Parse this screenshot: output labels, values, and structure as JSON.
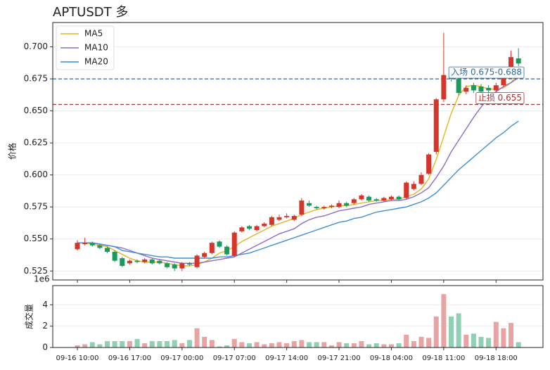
{
  "chart_data": {
    "type": "candlestick",
    "title": "APTUSDT 多",
    "ylabel": "价格",
    "categories": [
      "09-16 10:00",
      null,
      null,
      null,
      null,
      null,
      null,
      "09-16 17:00",
      null,
      null,
      null,
      null,
      null,
      null,
      "09-17 00:00",
      null,
      null,
      null,
      null,
      null,
      null,
      "09-17 07:00",
      null,
      null,
      null,
      null,
      null,
      null,
      "09-17 14:00",
      null,
      null,
      null,
      null,
      null,
      null,
      "09-17 21:00",
      null,
      null,
      null,
      null,
      null,
      null,
      "09-18 04:00",
      null,
      null,
      null,
      null,
      null,
      null,
      "09-18 11:00",
      null,
      null,
      null,
      null,
      null,
      null,
      "09-18 18:00",
      null,
      null,
      null
    ],
    "open": [
      0.542,
      0.546,
      0.547,
      0.545,
      0.543,
      0.54,
      0.535,
      0.531,
      0.533,
      0.532,
      0.534,
      0.533,
      0.531,
      0.53,
      0.527,
      0.531,
      0.528,
      0.536,
      0.539,
      0.548,
      0.544,
      0.537,
      0.556,
      0.56,
      0.557,
      0.56,
      0.561,
      0.565,
      0.567,
      0.565,
      0.569,
      0.578,
      0.575,
      0.574,
      0.575,
      0.575,
      0.578,
      0.578,
      0.581,
      0.583,
      0.581,
      0.58,
      0.581,
      0.583,
      0.582,
      0.589,
      0.593,
      0.601,
      0.618,
      0.659,
      0.677,
      0.675,
      0.665,
      0.67,
      0.669,
      0.668,
      0.666,
      0.67,
      0.684,
      0.691
    ],
    "high": [
      0.549,
      0.551,
      0.548,
      0.546,
      0.544,
      0.541,
      0.536,
      0.534,
      0.534,
      0.535,
      0.535,
      0.534,
      0.532,
      0.531,
      0.532,
      0.532,
      0.538,
      0.54,
      0.548,
      0.549,
      0.545,
      0.556,
      0.56,
      0.561,
      0.561,
      0.563,
      0.568,
      0.569,
      0.57,
      0.569,
      0.582,
      0.58,
      0.576,
      0.576,
      0.577,
      0.58,
      0.579,
      0.582,
      0.585,
      0.584,
      0.582,
      0.583,
      0.584,
      0.584,
      0.595,
      0.595,
      0.602,
      0.617,
      0.66,
      0.711,
      0.68,
      0.677,
      0.67,
      0.672,
      0.671,
      0.67,
      0.672,
      0.678,
      0.697,
      0.699
    ],
    "low": [
      0.541,
      0.545,
      0.544,
      0.542,
      0.539,
      0.532,
      0.528,
      0.53,
      0.531,
      0.531,
      0.53,
      0.53,
      0.527,
      0.525,
      0.525,
      0.529,
      0.527,
      0.535,
      0.538,
      0.543,
      0.537,
      0.536,
      0.555,
      0.557,
      0.556,
      0.559,
      0.56,
      0.564,
      0.566,
      0.564,
      0.568,
      0.575,
      0.573,
      0.573,
      0.574,
      0.574,
      0.575,
      0.577,
      0.58,
      0.579,
      0.579,
      0.579,
      0.58,
      0.58,
      0.581,
      0.588,
      0.592,
      0.6,
      0.616,
      0.657,
      0.673,
      0.662,
      0.663,
      0.664,
      0.663,
      0.664,
      0.664,
      0.669,
      0.682,
      0.685
    ],
    "close": [
      0.547,
      0.547,
      0.545,
      0.543,
      0.54,
      0.533,
      0.529,
      0.533,
      0.532,
      0.534,
      0.531,
      0.531,
      0.528,
      0.527,
      0.531,
      0.53,
      0.537,
      0.539,
      0.547,
      0.544,
      0.538,
      0.555,
      0.559,
      0.558,
      0.56,
      0.562,
      0.567,
      0.567,
      0.568,
      0.568,
      0.58,
      0.576,
      0.574,
      0.575,
      0.576,
      0.578,
      0.576,
      0.581,
      0.584,
      0.58,
      0.58,
      0.582,
      0.583,
      0.581,
      0.594,
      0.593,
      0.6,
      0.616,
      0.659,
      0.678,
      0.675,
      0.664,
      0.668,
      0.666,
      0.665,
      0.666,
      0.67,
      0.676,
      0.692,
      0.687
    ],
    "up_color": "#d6352b",
    "down_color": "#1a9a5c",
    "series": [
      {
        "name": "MA5",
        "color": "#e6b422",
        "values": [
          0.547,
          0.547,
          0.546,
          0.545,
          0.544,
          0.541,
          0.538,
          0.535,
          0.533,
          0.532,
          0.532,
          0.532,
          0.531,
          0.53,
          0.529,
          0.529,
          0.53,
          0.532,
          0.535,
          0.539,
          0.541,
          0.544,
          0.548,
          0.551,
          0.554,
          0.557,
          0.56,
          0.562,
          0.564,
          0.566,
          0.569,
          0.571,
          0.573,
          0.574,
          0.575,
          0.576,
          0.576,
          0.577,
          0.578,
          0.579,
          0.58,
          0.58,
          0.581,
          0.581,
          0.583,
          0.585,
          0.589,
          0.597,
          0.612,
          0.63,
          0.648,
          0.662,
          0.669,
          0.67,
          0.669,
          0.667,
          0.667,
          0.668,
          0.672,
          0.68
        ]
      },
      {
        "name": "MA10",
        "color": "#8e6cc8",
        "values": [
          0.547,
          0.547,
          0.547,
          0.546,
          0.545,
          0.544,
          0.543,
          0.541,
          0.539,
          0.537,
          0.535,
          0.534,
          0.533,
          0.532,
          0.531,
          0.531,
          0.531,
          0.532,
          0.533,
          0.534,
          0.535,
          0.536,
          0.539,
          0.542,
          0.545,
          0.548,
          0.551,
          0.554,
          0.556,
          0.558,
          0.562,
          0.565,
          0.567,
          0.568,
          0.57,
          0.572,
          0.573,
          0.574,
          0.575,
          0.577,
          0.578,
          0.579,
          0.58,
          0.58,
          0.581,
          0.583,
          0.586,
          0.59,
          0.598,
          0.607,
          0.618,
          0.627,
          0.636,
          0.645,
          0.653,
          0.66,
          0.665,
          0.669,
          0.672,
          0.676
        ]
      },
      {
        "name": "MA20",
        "color": "#3f8fd2",
        "values": [
          0.547,
          0.547,
          0.547,
          0.546,
          0.545,
          0.544,
          0.541,
          0.54,
          0.539,
          0.538,
          0.537,
          0.536,
          0.536,
          0.535,
          0.535,
          0.535,
          0.535,
          0.535,
          0.535,
          0.536,
          0.536,
          0.537,
          0.538,
          0.539,
          0.541,
          0.543,
          0.545,
          0.547,
          0.549,
          0.551,
          0.553,
          0.555,
          0.557,
          0.559,
          0.561,
          0.563,
          0.564,
          0.566,
          0.567,
          0.569,
          0.571,
          0.572,
          0.573,
          0.574,
          0.575,
          0.577,
          0.579,
          0.582,
          0.586,
          0.592,
          0.598,
          0.604,
          0.609,
          0.614,
          0.619,
          0.624,
          0.629,
          0.633,
          0.638,
          0.642
        ]
      }
    ],
    "ylim": [
      0.518,
      0.719
    ],
    "yticks": [
      0.525,
      {
        "value": 0.55,
        "label": "0.550"
      },
      0.575,
      {
        "value": 0.6,
        "label": "0.600"
      },
      0.625,
      {
        "value": 0.65,
        "label": "0.650"
      },
      0.675,
      {
        "value": 0.7,
        "label": "0.700"
      }
    ],
    "grid": true,
    "legend": "upper left",
    "hlines": [
      {
        "value": 0.675,
        "label": "入场 0.675-0.688",
        "color": "#2c6aa0"
      },
      {
        "value": 0.655,
        "label": "止损 0.655",
        "color": "#a83232"
      }
    ],
    "volume": {
      "ylabel": "成交量",
      "offset_label": "1e6",
      "up_color": "#e8a3a3",
      "down_color": "#92d0b4",
      "values": [
        0.2,
        0.3,
        0.5,
        0.3,
        0.6,
        0.6,
        0.6,
        0.6,
        0.8,
        0.4,
        0.6,
        0.6,
        0.6,
        0.7,
        0.4,
        0.7,
        1.8,
        1.0,
        0.7,
        0.1,
        0.2,
        0.8,
        0.5,
        0.4,
        0.5,
        0.3,
        0.4,
        0.5,
        0.4,
        0.6,
        0.7,
        0.5,
        0.5,
        0.5,
        0.2,
        0.5,
        0.4,
        0.4,
        0.6,
        0.3,
        0.4,
        0.3,
        0.3,
        0.4,
        1.2,
        0.6,
        1.0,
        0.9,
        2.9,
        5.0,
        2.9,
        3.2,
        1.2,
        1.3,
        1.0,
        0.9,
        2.4,
        1.8,
        2.3,
        0.5
      ],
      "ylim": [
        0,
        5.8
      ],
      "yticks": [
        0,
        2,
        4
      ]
    }
  }
}
